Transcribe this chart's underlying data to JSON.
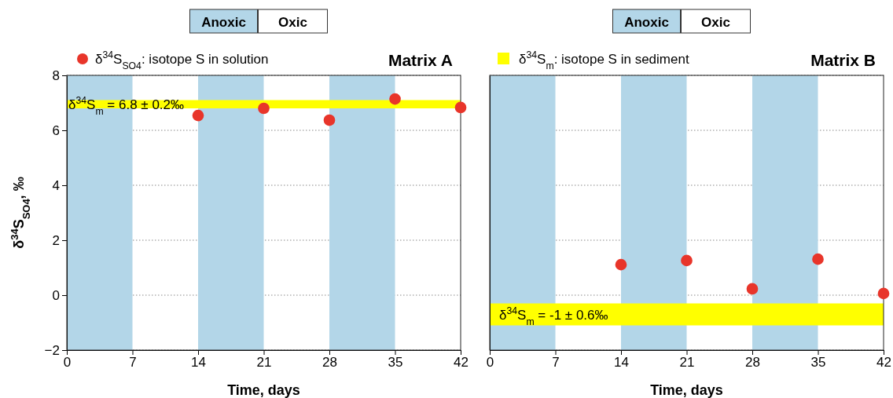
{
  "chart_data": [
    {
      "type": "scatter",
      "title": "Matrix A",
      "xlabel": "Time, days",
      "ylabel": "δ$^{34}$S$_{SO4}$, ‰",
      "x": [
        14,
        21,
        28,
        35,
        42
      ],
      "series": [
        {
          "name": "δ$^{34}$S$_{SO4}$: isotope S in solution",
          "color": "#e8352a",
          "values": [
            6.54,
            6.8,
            6.37,
            7.14,
            6.83
          ]
        }
      ],
      "xlim": [
        0,
        42
      ],
      "xticks": [
        0,
        7,
        14,
        21,
        28,
        35,
        42
      ],
      "ylim": [
        -2,
        8
      ],
      "yticks": [
        -2,
        0,
        2,
        4,
        6,
        8
      ],
      "bands": [
        {
          "axis": "x",
          "from": 0,
          "to": 7,
          "color": "#b3d6e8"
        },
        {
          "axis": "x",
          "from": 14,
          "to": 21,
          "color": "#b3d6e8"
        },
        {
          "axis": "x",
          "from": 28,
          "to": 35,
          "color": "#b3d6e8"
        },
        {
          "axis": "y",
          "from": 6.8,
          "to": 7.1,
          "color": "#ffff00",
          "label": "δ$^{34}$S$_{m}$ = 6.8 ± 0.2‰"
        }
      ],
      "annotations": [
        "Anoxic",
        "Oxic"
      ],
      "grid": "y",
      "legend": "top left",
      "marker": "circle"
    },
    {
      "type": "scatter",
      "title": "Matrix B",
      "xlabel": "Time, days",
      "x": [
        14,
        21,
        28,
        35,
        42
      ],
      "series": [
        {
          "color": "#e8352a",
          "values": [
            1.11,
            1.26,
            0.23,
            1.31,
            0.06
          ]
        }
      ],
      "xlim": [
        0,
        42
      ],
      "xticks": [
        0,
        7,
        14,
        21,
        28,
        35,
        42
      ],
      "ylim": [
        -2,
        8
      ],
      "yticks": [
        -2,
        0,
        2,
        4,
        6,
        8
      ],
      "bands": [
        {
          "axis": "x",
          "from": 0,
          "to": 7,
          "color": "#b3d6e8"
        },
        {
          "axis": "x",
          "from": 14,
          "to": 21,
          "color": "#b3d6e8"
        },
        {
          "axis": "x",
          "from": 28,
          "to": 35,
          "color": "#b3d6e8"
        },
        {
          "axis": "y",
          "from": -1.1,
          "to": -0.3,
          "color": "#ffff00",
          "label": "δ$^{34}$S$_{m}$ = -1 ± 0.6‰"
        }
      ],
      "annotations": [
        "Anoxic",
        "Oxic",
        "δ$^{34}$S$_{m}$: isotope S in sediment"
      ],
      "grid": "y",
      "tick_labels": "x",
      "marker": "circle"
    }
  ]
}
